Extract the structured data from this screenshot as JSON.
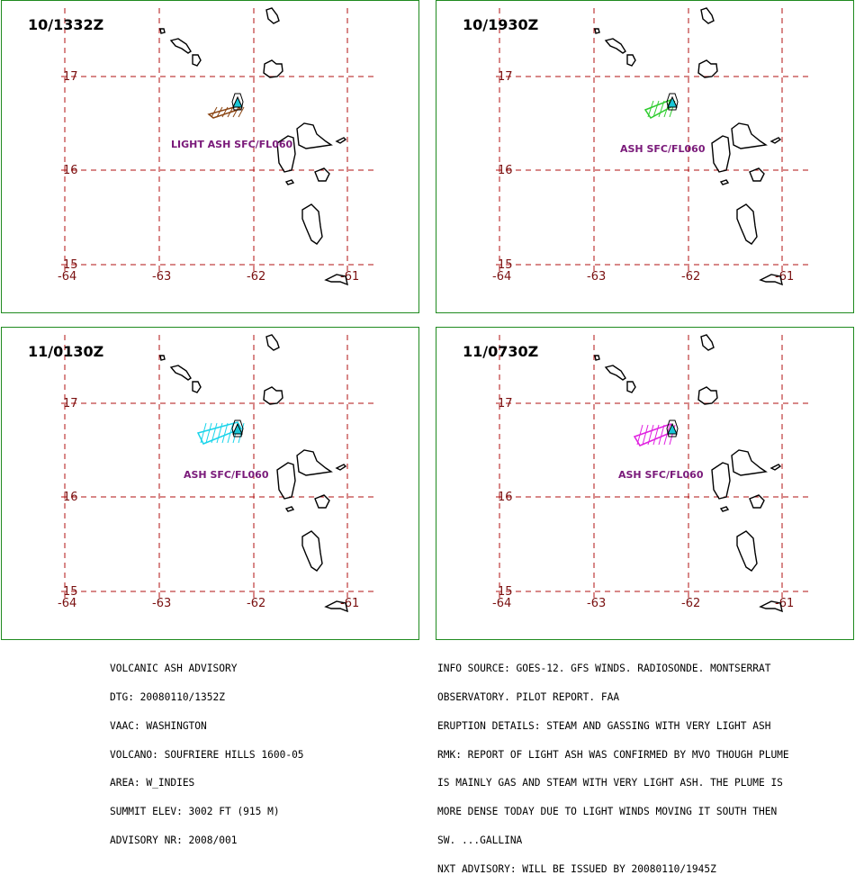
{
  "panels": [
    {
      "time": "10/1332Z",
      "ash_label": "LIGHT ASH SFC/FL060",
      "ash_color": "#8b4513",
      "label_x": 188,
      "label_y": 163
    },
    {
      "time": "10/1930Z",
      "ash_label": "ASH SFC/FL060",
      "ash_color": "#2ecc2e",
      "label_x": 204,
      "label_y": 168
    },
    {
      "time": "11/0130Z",
      "ash_label": "ASH SFC/FL060",
      "ash_color": "#19d4ea",
      "label_x": 202,
      "label_y": 167
    },
    {
      "time": "11/0730Z",
      "ash_label": "ASH SFC/FL060",
      "ash_color": "#e020e0",
      "label_x": 202,
      "label_y": 167
    }
  ],
  "map": {
    "latitudes": [
      "17",
      "16",
      "15"
    ],
    "longitudes": [
      "-64",
      "-63",
      "-62",
      "-61"
    ],
    "grid_color": "#b01010",
    "coast_color": "#000000",
    "volcano_color": "#19c6d6"
  },
  "advisory": {
    "left_lines": [
      "VOLCANIC ASH ADVISORY",
      "DTG: 20080110/1352Z",
      "VAAC: WASHINGTON",
      "VOLCANO: SOUFRIERE HILLS 1600-05",
      "AREA: W_INDIES",
      "SUMMIT ELEV: 3002 FT (915 M)",
      "ADVISORY NR: 2008/001"
    ],
    "right_lines": [
      "INFO SOURCE: GOES-12. GFS WINDS. RADIOSONDE. MONTSERRAT",
      "OBSERVATORY. PILOT REPORT. FAA",
      "ERUPTION DETAILS: STEAM AND GASSING WITH VERY LIGHT ASH",
      "RMK: REPORT OF LIGHT ASH WAS CONFIRMED BY MVO THOUGH PLUME",
      "IS MAINLY GAS AND STEAM WITH VERY LIGHT ASH. THE PLUME IS",
      "MORE DENSE TODAY DUE TO LIGHT WINDS MOVING IT SOUTH THEN",
      "SW. ...GALLINA",
      "NXT ADVISORY: WILL BE ISSUED BY 20080110/1945Z"
    ]
  }
}
